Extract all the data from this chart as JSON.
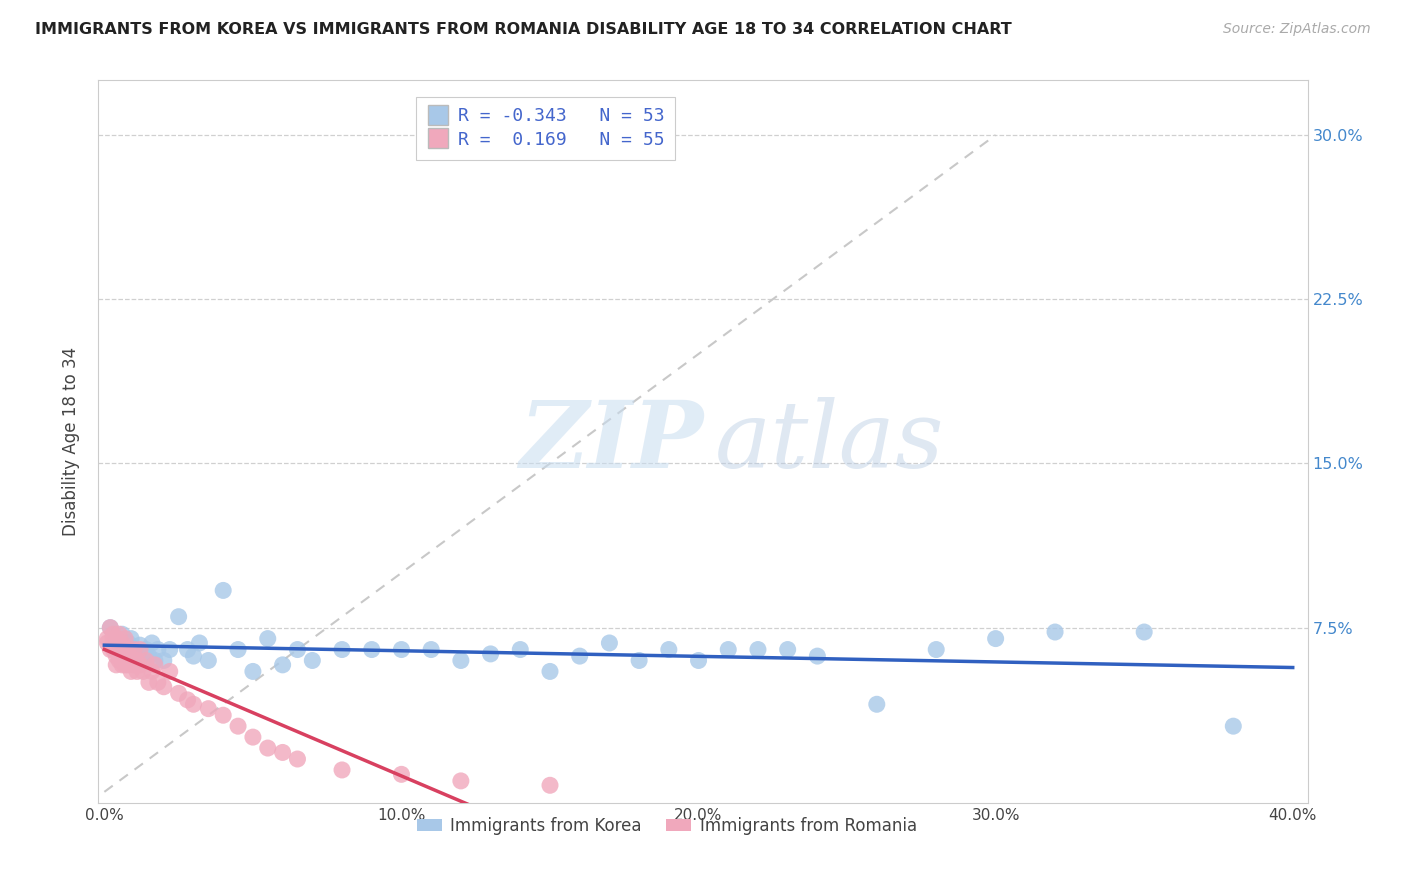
{
  "title": "IMMIGRANTS FROM KOREA VS IMMIGRANTS FROM ROMANIA DISABILITY AGE 18 TO 34 CORRELATION CHART",
  "source": "Source: ZipAtlas.com",
  "ylabel": "Disability Age 18 to 34",
  "xlim": [
    -0.002,
    0.405
  ],
  "ylim": [
    -0.005,
    0.325
  ],
  "xticks": [
    0.0,
    0.1,
    0.2,
    0.3,
    0.4
  ],
  "xtick_labels": [
    "0.0%",
    "10.0%",
    "20.0%",
    "30.0%",
    "40.0%"
  ],
  "yticks": [
    0.0,
    0.075,
    0.15,
    0.225,
    0.3
  ],
  "ytick_labels": [
    "",
    "7.5%",
    "15.0%",
    "22.5%",
    "30.0%"
  ],
  "grid_color": "#d0d0d0",
  "background_color": "#ffffff",
  "legend_korea_label": "Immigrants from Korea",
  "legend_romania_label": "Immigrants from Romania",
  "korea_R": "-0.343",
  "korea_N": "53",
  "romania_R": " 0.169",
  "romania_N": "55",
  "korea_color": "#a8c8e8",
  "korea_line_color": "#3060c0",
  "romania_color": "#f0a8bc",
  "romania_line_color": "#d84060",
  "diag_line_color": "#c8c8c8",
  "korea_scatter_x": [
    0.002,
    0.004,
    0.005,
    0.006,
    0.007,
    0.008,
    0.009,
    0.01,
    0.011,
    0.012,
    0.013,
    0.014,
    0.015,
    0.016,
    0.017,
    0.018,
    0.02,
    0.022,
    0.025,
    0.028,
    0.03,
    0.032,
    0.035,
    0.04,
    0.045,
    0.05,
    0.055,
    0.06,
    0.065,
    0.07,
    0.08,
    0.09,
    0.1,
    0.11,
    0.12,
    0.13,
    0.14,
    0.15,
    0.16,
    0.17,
    0.18,
    0.19,
    0.2,
    0.21,
    0.22,
    0.23,
    0.24,
    0.26,
    0.28,
    0.3,
    0.32,
    0.35,
    0.38
  ],
  "korea_scatter_y": [
    0.075,
    0.07,
    0.068,
    0.072,
    0.065,
    0.068,
    0.07,
    0.065,
    0.063,
    0.067,
    0.06,
    0.065,
    0.062,
    0.068,
    0.06,
    0.065,
    0.06,
    0.065,
    0.08,
    0.065,
    0.062,
    0.068,
    0.06,
    0.092,
    0.065,
    0.055,
    0.07,
    0.058,
    0.065,
    0.06,
    0.065,
    0.065,
    0.065,
    0.065,
    0.06,
    0.063,
    0.065,
    0.055,
    0.062,
    0.068,
    0.06,
    0.065,
    0.06,
    0.065,
    0.065,
    0.065,
    0.062,
    0.04,
    0.065,
    0.07,
    0.073,
    0.073,
    0.03
  ],
  "romania_scatter_x": [
    0.001,
    0.001,
    0.002,
    0.002,
    0.003,
    0.003,
    0.003,
    0.004,
    0.004,
    0.004,
    0.004,
    0.005,
    0.005,
    0.005,
    0.005,
    0.006,
    0.006,
    0.006,
    0.007,
    0.007,
    0.007,
    0.008,
    0.008,
    0.008,
    0.008,
    0.009,
    0.009,
    0.01,
    0.01,
    0.011,
    0.011,
    0.012,
    0.012,
    0.013,
    0.014,
    0.015,
    0.016,
    0.017,
    0.018,
    0.02,
    0.022,
    0.025,
    0.028,
    0.03,
    0.035,
    0.04,
    0.045,
    0.05,
    0.055,
    0.06,
    0.065,
    0.08,
    0.1,
    0.12,
    0.15
  ],
  "romania_scatter_y": [
    0.07,
    0.068,
    0.065,
    0.075,
    0.065,
    0.07,
    0.072,
    0.062,
    0.058,
    0.065,
    0.07,
    0.06,
    0.065,
    0.068,
    0.072,
    0.058,
    0.065,
    0.068,
    0.06,
    0.058,
    0.07,
    0.06,
    0.065,
    0.062,
    0.058,
    0.055,
    0.06,
    0.058,
    0.065,
    0.06,
    0.055,
    0.058,
    0.065,
    0.055,
    0.06,
    0.05,
    0.055,
    0.058,
    0.05,
    0.048,
    0.055,
    0.045,
    0.042,
    0.04,
    0.038,
    0.035,
    0.03,
    0.025,
    0.02,
    0.018,
    0.015,
    0.01,
    0.008,
    0.005,
    0.003
  ]
}
